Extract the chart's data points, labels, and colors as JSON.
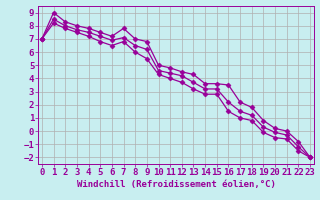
{
  "xlabel": "Windchill (Refroidissement éolien,°C)",
  "x": [
    0,
    1,
    2,
    3,
    4,
    5,
    6,
    7,
    8,
    9,
    10,
    11,
    12,
    13,
    14,
    15,
    16,
    17,
    18,
    19,
    20,
    21,
    22,
    23
  ],
  "line_top": [
    7.0,
    9.0,
    8.3,
    8.0,
    7.8,
    7.5,
    7.2,
    7.8,
    7.0,
    6.8,
    5.0,
    4.8,
    4.5,
    4.3,
    3.6,
    3.6,
    3.5,
    2.2,
    1.8,
    0.8,
    0.2,
    0.0,
    -0.8,
    -2.0
  ],
  "line_mid": [
    7.0,
    8.5,
    8.0,
    7.7,
    7.5,
    7.2,
    6.9,
    7.1,
    6.5,
    6.2,
    4.6,
    4.4,
    4.2,
    3.7,
    3.2,
    3.2,
    2.2,
    1.5,
    1.2,
    0.3,
    -0.1,
    -0.3,
    -1.2,
    -2.0
  ],
  "line_bot": [
    7.0,
    8.2,
    7.8,
    7.5,
    7.2,
    6.8,
    6.5,
    6.8,
    6.0,
    5.5,
    4.3,
    4.0,
    3.7,
    3.2,
    2.8,
    2.8,
    1.5,
    1.0,
    0.8,
    -0.1,
    -0.5,
    -0.6,
    -1.5,
    -2.0
  ],
  "line_color": "#990099",
  "bg_color": "#c8eef0",
  "grid_color": "#b0b0b0",
  "ylim": [
    -2.5,
    9.5
  ],
  "yticks": [
    -2,
    -1,
    0,
    1,
    2,
    3,
    4,
    5,
    6,
    7,
    8,
    9
  ],
  "xlim": [
    -0.3,
    23.3
  ],
  "xticks": [
    0,
    1,
    2,
    3,
    4,
    5,
    6,
    7,
    8,
    9,
    10,
    11,
    12,
    13,
    14,
    15,
    16,
    17,
    18,
    19,
    20,
    21,
    22,
    23
  ],
  "marker": "D",
  "markersize": 2.5,
  "linewidth": 0.9,
  "fontsize_label": 6.5,
  "fontsize_tick": 6.5
}
